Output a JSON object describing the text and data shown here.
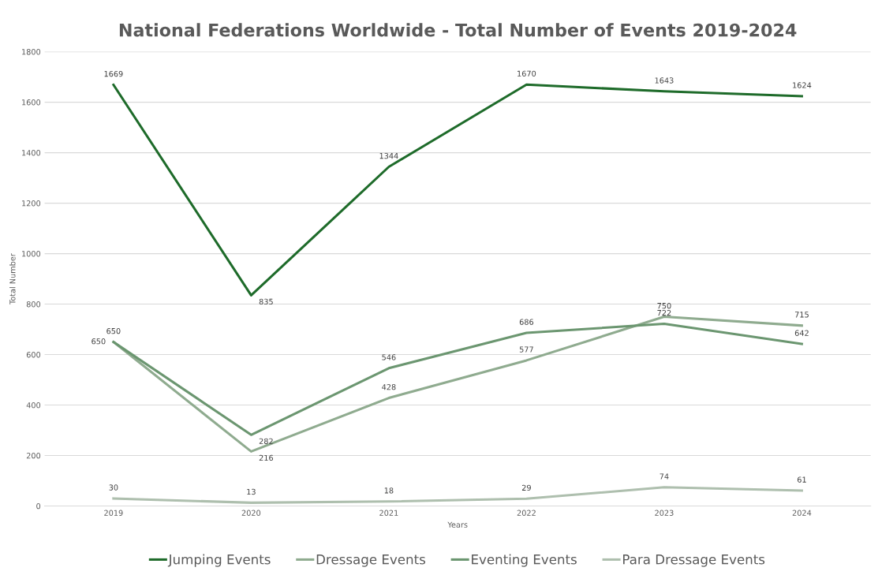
{
  "chart_data": {
    "type": "line",
    "title": "National Federations Worldwide - Total Number of Events 2019-2024",
    "xlabel": "Years",
    "ylabel": "Total Number",
    "categories": [
      "2019",
      "2020",
      "2021",
      "2022",
      "2023",
      "2024"
    ],
    "series": [
      {
        "name": "Jumping Events",
        "color": "#1e6b2a",
        "values": [
          1669,
          835,
          1344,
          1670,
          1643,
          1624
        ]
      },
      {
        "name": "Dressage Events",
        "color": "#8fab8f",
        "values": [
          650,
          216,
          428,
          577,
          750,
          715
        ]
      },
      {
        "name": "Eventing Events",
        "color": "#6b9670",
        "values": [
          650,
          282,
          546,
          686,
          722,
          642
        ]
      },
      {
        "name": "Para Dressage Events",
        "color": "#aebfae",
        "values": [
          30,
          13,
          18,
          29,
          74,
          61
        ]
      }
    ],
    "ylim": [
      0,
      1800
    ],
    "yticks": [
      0,
      200,
      400,
      600,
      800,
      1000,
      1200,
      1400,
      1600,
      1800
    ],
    "grid": "y",
    "legend": "bottom",
    "data_labels": true,
    "marker": "none",
    "line_style": "solid"
  }
}
